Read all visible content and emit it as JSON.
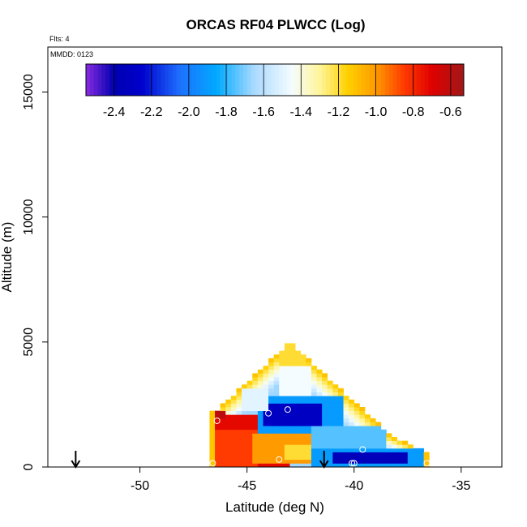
{
  "chart_data": {
    "type": "heatmap",
    "title": "ORCAS RF04 PLWCC (Log)",
    "annotations": {
      "flights": "Flts: 4",
      "date": "MMDD: 0123"
    },
    "xlabel": "Latitude (deg N)",
    "ylabel": "Altitude (m)",
    "xlim": [
      -54.3,
      -33.1
    ],
    "ylim": [
      0,
      16800
    ],
    "x_ticks": [
      -50,
      -45,
      -40,
      -35
    ],
    "x_tick_labels": [
      "-50",
      "-45",
      "-40",
      "-35"
    ],
    "y_ticks": [
      0,
      5000,
      10000,
      15000
    ],
    "y_tick_labels": [
      "0",
      "5000",
      "10000",
      "15000"
    ],
    "colorbar": {
      "min": -2.55,
      "max": -0.53,
      "ticks": [
        -2.4,
        -2.2,
        -2.0,
        -1.8,
        -1.6,
        -1.4,
        -1.2,
        -1.0,
        -0.8,
        -0.6
      ],
      "tick_labels": [
        "-2.4",
        "-2.2",
        "-2.0",
        "-1.8",
        "-1.6",
        "-1.4",
        "-1.2",
        "-1.0",
        "-0.8",
        "-0.6"
      ],
      "stops": [
        [
          "-2.55",
          "#8a2be2"
        ],
        [
          "-2.4",
          "#0000b0"
        ],
        [
          "-2.25",
          "#0000cd"
        ],
        [
          "-2.05",
          "#1e6fff"
        ],
        [
          "-1.85",
          "#00aaff"
        ],
        [
          "-1.65",
          "#aadaff"
        ],
        [
          "-1.45",
          "#f4fcff"
        ],
        [
          "-1.3",
          "#fff59a"
        ],
        [
          "-1.15",
          "#ffd000"
        ],
        [
          "-1.0",
          "#ff9a00"
        ],
        [
          "-0.85",
          "#ff3b00"
        ],
        [
          "-0.7",
          "#e00000"
        ],
        [
          "-0.53",
          "#a01818"
        ]
      ]
    },
    "cell_size": {
      "lat": 0.25,
      "alt": 150
    },
    "regions": [
      {
        "lat": [
          -46.6,
          -43.0
        ],
        "alt": [
          0,
          2100
        ],
        "value": -0.72
      },
      {
        "lat": [
          -46.6,
          -44.6
        ],
        "alt": [
          0,
          1500
        ],
        "value": -0.85
      },
      {
        "lat": [
          -44.7,
          -42.0
        ],
        "alt": [
          200,
          1300
        ],
        "value": -1.0
      },
      {
        "lat": [
          -43.2,
          -41.6
        ],
        "alt": [
          300,
          900
        ],
        "value": -1.2
      },
      {
        "lat": [
          -42.0,
          -36.8
        ],
        "alt": [
          0,
          700
        ],
        "value": -1.9
      },
      {
        "lat": [
          -41.0,
          -37.5
        ],
        "alt": [
          100,
          550
        ],
        "value": -2.35
      },
      {
        "lat": [
          -44.5,
          -40.5
        ],
        "alt": [
          1400,
          2800
        ],
        "value": -1.9
      },
      {
        "lat": [
          -44.2,
          -41.5
        ],
        "alt": [
          1700,
          2500
        ],
        "value": -2.3
      },
      {
        "lat": [
          -42.0,
          -38.5
        ],
        "alt": [
          700,
          1700
        ],
        "value": -1.75
      },
      {
        "lat": [
          -45.2,
          -44.0
        ],
        "alt": [
          2200,
          3200
        ],
        "value": -1.5
      },
      {
        "lat": [
          -43.5,
          -42.0
        ],
        "alt": [
          2800,
          4000
        ],
        "value": -1.45
      },
      {
        "lat": [
          -46.6,
          -46.0
        ],
        "alt": [
          1900,
          2300
        ],
        "value": -0.6
      },
      {
        "lat": [
          -43.5,
          -42.3
        ],
        "alt": [
          4000,
          5000
        ],
        "value": -1.2
      }
    ],
    "envelope": {
      "left_edge": [
        [
          0,
          -46.7
        ],
        [
          2200,
          -46.7
        ],
        [
          2300,
          -46.4
        ],
        [
          5000,
          -43.0
        ]
      ],
      "right_edge": [
        [
          0,
          -36.6
        ],
        [
          600,
          -36.6
        ],
        [
          1200,
          -38.2
        ],
        [
          5000,
          -43.0
        ]
      ]
    },
    "circles": [
      {
        "lat": -46.9,
        "alt": 2100
      },
      {
        "lat": -46.4,
        "alt": 1850
      },
      {
        "lat": -44.0,
        "alt": 2150
      },
      {
        "lat": -43.1,
        "alt": 2300
      },
      {
        "lat": -43.5,
        "alt": 300
      },
      {
        "lat": -46.6,
        "alt": 150
      },
      {
        "lat": -39.6,
        "alt": 700
      },
      {
        "lat": -40.1,
        "alt": 150
      },
      {
        "lat": -40.0,
        "alt": 150
      },
      {
        "lat": -36.6,
        "alt": 150
      }
    ],
    "arrows": [
      {
        "lat": -53.0
      },
      {
        "lat": -41.4
      }
    ]
  }
}
